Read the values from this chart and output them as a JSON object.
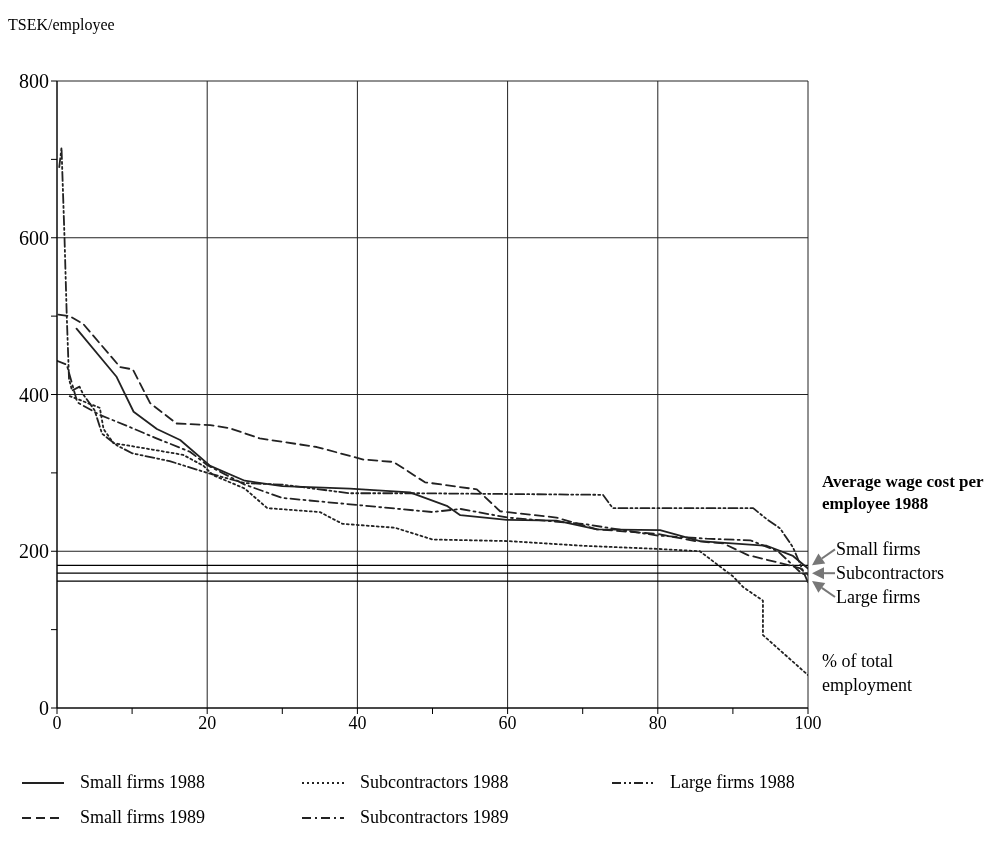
{
  "chart_data": {
    "type": "line",
    "ylabel": "TSEK/employee",
    "xlabel": "% of total employment",
    "xlim": [
      0,
      100
    ],
    "ylim": [
      0,
      800
    ],
    "xticks": [
      0,
      {
        "value": 10,
        "label": null
      },
      20,
      {
        "value": 30,
        "label": null
      },
      40,
      {
        "value": 50,
        "label": null
      },
      60,
      {
        "value": 70,
        "label": null
      },
      80,
      {
        "value": 90,
        "label": null
      },
      100
    ],
    "yticks": [
      0,
      {
        "value": 100,
        "label": null
      },
      200,
      {
        "value": 300,
        "label": null
      },
      400,
      {
        "value": 500,
        "label": null
      },
      600,
      {
        "value": 700,
        "label": null
      },
      800
    ],
    "grid": true,
    "legend": "bottom",
    "marker": "none",
    "annotations": [
      "Average wage cost per employee 1988"
    ],
    "ref_lines": [
      {
        "axis": "y",
        "value": 182,
        "label": "Small firms",
        "color": "#000000"
      },
      {
        "axis": "y",
        "value": 172,
        "label": "Subcontractors",
        "color": "#000000"
      },
      {
        "axis": "y",
        "value": 162,
        "label": "Large firms",
        "color": "#000000"
      }
    ],
    "series": [
      {
        "name": "Small firms 1988",
        "color": "#222222",
        "line_style": "solid",
        "x": [
          2.6,
          7.9,
          10.2,
          13.3,
          16.4,
          20.4,
          25,
          30,
          39,
          47,
          51.9,
          53.7,
          59.9,
          66.5,
          71.9,
          80.3,
          85.6,
          94.5,
          98,
          100
        ],
        "values": [
          484,
          423,
          378,
          356,
          342,
          309,
          290,
          283,
          280,
          275,
          258,
          246,
          240,
          239,
          228,
          227,
          213,
          207,
          194,
          178
        ]
      },
      {
        "name": "Subcontractors 1988",
        "color": "#222222",
        "line_style": "dotted",
        "x": [
          1.7,
          5.7,
          6.2,
          7.5,
          11.9,
          16.8,
          19.5,
          20.8,
          25,
          28,
          35,
          38,
          45,
          50,
          60,
          70,
          80,
          85.6,
          90,
          91.4,
          94,
          94,
          100
        ],
        "values": [
          398,
          383,
          356,
          338,
          331,
          323,
          309,
          297,
          280,
          255,
          250,
          235,
          230,
          215,
          213,
          207,
          203,
          200,
          168,
          154,
          137,
          93,
          42
        ]
      },
      {
        "name": "Large firms 1988",
        "color": "#222222",
        "line_style": "dashdotdot",
        "x": [
          0.3,
          0.6,
          1,
          1.3,
          1.6,
          2,
          3,
          3.5,
          5,
          6,
          8,
          10,
          15,
          20,
          25,
          30,
          39,
          47.9,
          72.7,
          74,
          92.7,
          94.5,
          96.3,
          98,
          100
        ],
        "values": [
          690,
          715,
          600,
          500,
          420,
          405,
          410,
          400,
          380,
          350,
          335,
          325,
          315,
          300,
          287,
          285,
          274,
          274,
          272,
          255,
          255,
          241,
          229,
          205,
          160
        ]
      },
      {
        "name": "Small firms 1989",
        "color": "#222222",
        "line_style": "dashed",
        "x": [
          0.2,
          1.7,
          3.5,
          8.4,
          10.1,
          12.4,
          15.9,
          20.4,
          23,
          27,
          34.6,
          40.8,
          44.8,
          49,
          55.9,
          59,
          66.5,
          71.9,
          80,
          85,
          88.7,
          92,
          96.3,
          99,
          100
        ],
        "values": [
          502,
          500,
          490,
          435,
          432,
          389,
          363,
          361,
          357,
          344,
          333,
          317,
          314,
          288,
          279,
          251,
          243,
          228,
          222,
          213,
          210,
          195,
          185,
          178,
          170
        ]
      },
      {
        "name": "Subcontractors 1989",
        "color": "#222222",
        "line_style": "dashdot",
        "x": [
          0,
          1.3,
          2.7,
          5.7,
          9.3,
          13,
          17.7,
          20,
          25,
          30,
          40,
          50,
          53.7,
          60,
          70,
          80,
          86.5,
          92.3,
          96,
          99,
          100
        ],
        "values": [
          443,
          438,
          390,
          374,
          360,
          345,
          327,
          310,
          285,
          268,
          259,
          250,
          254,
          243,
          235,
          220,
          216,
          214,
          200,
          173,
          168
        ]
      }
    ]
  }
}
